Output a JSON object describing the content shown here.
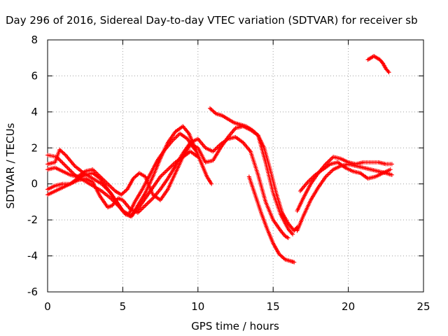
{
  "chart_data": {
    "type": "scatter",
    "title": "Day 296 of 2016, Sidereal Day-to-day VTEC variation (SDTVAR) for receiver sb",
    "xlabel": "GPS time / hours",
    "ylabel": "SDTVAR / TECUs",
    "xlim": [
      0,
      25
    ],
    "ylim": [
      -6,
      8
    ],
    "xticks": [
      0,
      5,
      10,
      15,
      20,
      25
    ],
    "yticks": [
      -6,
      -4,
      -2,
      0,
      2,
      4,
      6,
      8
    ],
    "grid": true,
    "marker": "plus",
    "color": "#ff0000",
    "series": [
      {
        "points": [
          [
            0,
            1.6
          ],
          [
            0.6,
            1.5
          ],
          [
            1.2,
            1.0
          ],
          [
            1.8,
            0.5
          ],
          [
            2.4,
            0.2
          ],
          [
            3.0,
            -0.1
          ],
          [
            3.6,
            -0.4
          ],
          [
            4.2,
            -0.8
          ],
          [
            4.8,
            -1.3
          ],
          [
            5.2,
            -1.7
          ],
          [
            5.6,
            -1.8
          ],
          [
            6.0,
            -1.2
          ],
          [
            6.5,
            -0.5
          ],
          [
            7.0,
            0.4
          ],
          [
            7.5,
            1.4
          ],
          [
            8.0,
            2.3
          ],
          [
            8.5,
            2.9
          ],
          [
            9.0,
            3.2
          ],
          [
            9.4,
            2.8
          ],
          [
            9.8,
            2.0
          ],
          [
            10.2,
            1.2
          ],
          [
            10.6,
            0.4
          ],
          [
            10.9,
            0.0
          ]
        ]
      },
      {
        "points": [
          [
            0,
            1.1
          ],
          [
            0.5,
            1.2
          ],
          [
            0.8,
            1.9
          ],
          [
            1.2,
            1.6
          ],
          [
            1.8,
            1.0
          ],
          [
            2.4,
            0.6
          ],
          [
            3.0,
            0.3
          ],
          [
            3.6,
            0.0
          ],
          [
            4.2,
            -0.5
          ],
          [
            4.6,
            -1.0
          ],
          [
            5.0,
            -1.5
          ],
          [
            5.4,
            -1.7
          ],
          [
            5.8,
            -1.0
          ],
          [
            6.3,
            -0.3
          ],
          [
            6.8,
            0.5
          ],
          [
            7.3,
            1.3
          ],
          [
            7.8,
            1.9
          ],
          [
            8.3,
            2.4
          ],
          [
            8.8,
            2.8
          ],
          [
            9.3,
            2.5
          ],
          [
            9.8,
            1.9
          ]
        ]
      },
      {
        "points": [
          [
            0,
            0.8
          ],
          [
            0.5,
            0.9
          ],
          [
            1.0,
            0.7
          ],
          [
            1.5,
            0.5
          ],
          [
            2.0,
            0.4
          ],
          [
            2.5,
            0.7
          ],
          [
            3.0,
            0.8
          ],
          [
            3.5,
            0.4
          ],
          [
            4.0,
            0.0
          ],
          [
            4.5,
            -0.4
          ],
          [
            4.9,
            -0.6
          ],
          [
            5.3,
            -0.3
          ],
          [
            5.7,
            0.3
          ],
          [
            6.1,
            0.6
          ],
          [
            6.5,
            0.4
          ],
          [
            7.0,
            -0.6
          ],
          [
            7.5,
            -0.9
          ],
          [
            8.0,
            -0.3
          ],
          [
            8.5,
            0.6
          ],
          [
            9.0,
            1.5
          ],
          [
            9.5,
            2.2
          ],
          [
            10.0,
            2.0
          ],
          [
            10.5,
            1.2
          ],
          [
            11.0,
            1.3
          ],
          [
            11.5,
            2.0
          ],
          [
            12.0,
            2.6
          ],
          [
            12.5,
            3.1
          ],
          [
            13.0,
            3.2
          ],
          [
            13.5,
            3.0
          ],
          [
            14.0,
            2.7
          ],
          [
            14.5,
            1.2
          ],
          [
            15.0,
            -0.5
          ],
          [
            15.5,
            -1.7
          ],
          [
            16.0,
            -2.5
          ],
          [
            16.3,
            -2.8
          ]
        ]
      },
      {
        "points": [
          [
            0,
            -0.3
          ],
          [
            0.5,
            -0.1
          ],
          [
            1.0,
            0.0
          ],
          [
            1.5,
            0.0
          ],
          [
            2.0,
            0.2
          ],
          [
            2.5,
            0.3
          ],
          [
            3.0,
            0.1
          ],
          [
            3.5,
            -0.7
          ],
          [
            4.0,
            -1.3
          ],
          [
            4.3,
            -1.2
          ],
          [
            4.7,
            -0.8
          ],
          [
            5.0,
            -0.9
          ],
          [
            5.5,
            -1.4
          ],
          [
            6.0,
            -1.6
          ],
          [
            6.5,
            -1.2
          ],
          [
            7.0,
            -0.8
          ],
          [
            7.5,
            -0.3
          ],
          [
            8.0,
            0.3
          ],
          [
            8.5,
            1.0
          ],
          [
            9.0,
            1.7
          ],
          [
            9.5,
            2.3
          ],
          [
            10.0,
            2.5
          ],
          [
            10.5,
            2.0
          ],
          [
            11.0,
            1.8
          ],
          [
            11.5,
            2.2
          ],
          [
            12.0,
            2.5
          ],
          [
            12.5,
            2.6
          ],
          [
            13.0,
            2.3
          ],
          [
            13.5,
            1.8
          ],
          [
            14.0,
            0.5
          ],
          [
            14.5,
            -1.0
          ],
          [
            15.0,
            -2.0
          ],
          [
            15.5,
            -2.6
          ],
          [
            15.8,
            -2.9
          ],
          [
            16.0,
            -3.0
          ]
        ]
      },
      {
        "points": [
          [
            0,
            -0.6
          ],
          [
            0.5,
            -0.4
          ],
          [
            1.0,
            -0.2
          ],
          [
            1.5,
            0.0
          ],
          [
            2.0,
            0.3
          ],
          [
            2.5,
            0.5
          ],
          [
            3.0,
            0.6
          ],
          [
            3.5,
            0.3
          ],
          [
            4.0,
            -0.3
          ],
          [
            4.5,
            -0.9
          ],
          [
            5.0,
            -1.5
          ],
          [
            5.5,
            -1.8
          ],
          [
            6.0,
            -1.4
          ],
          [
            6.5,
            -0.8
          ],
          [
            7.0,
            -0.2
          ],
          [
            7.5,
            0.4
          ],
          [
            8.0,
            0.8
          ],
          [
            8.5,
            1.2
          ],
          [
            9.0,
            1.5
          ],
          [
            9.5,
            1.8
          ],
          [
            10.0,
            1.5
          ]
        ]
      },
      {
        "points": [
          [
            10.8,
            4.2
          ],
          [
            11.2,
            3.9
          ],
          [
            11.6,
            3.8
          ],
          [
            12.0,
            3.6
          ],
          [
            12.4,
            3.4
          ],
          [
            12.8,
            3.3
          ],
          [
            13.2,
            3.2
          ],
          [
            13.6,
            3.0
          ],
          [
            14.0,
            2.7
          ],
          [
            14.4,
            2.0
          ],
          [
            14.8,
            0.8
          ],
          [
            15.2,
            -0.5
          ],
          [
            15.6,
            -1.6
          ],
          [
            16.0,
            -2.2
          ],
          [
            16.4,
            -2.6
          ],
          [
            16.6,
            -2.4
          ]
        ]
      },
      {
        "points": [
          [
            13.4,
            0.4
          ],
          [
            13.8,
            -0.6
          ],
          [
            14.2,
            -1.6
          ],
          [
            14.6,
            -2.5
          ],
          [
            15.0,
            -3.3
          ],
          [
            15.4,
            -3.9
          ],
          [
            15.8,
            -4.2
          ],
          [
            16.2,
            -4.3
          ],
          [
            16.4,
            -4.35
          ]
        ]
      },
      {
        "points": [
          [
            16.6,
            -2.6
          ],
          [
            17.0,
            -1.8
          ],
          [
            17.5,
            -0.9
          ],
          [
            18.0,
            -0.2
          ],
          [
            18.5,
            0.4
          ],
          [
            19.0,
            0.8
          ],
          [
            19.5,
            1.0
          ],
          [
            20.0,
            1.1
          ],
          [
            20.5,
            1.0
          ],
          [
            21.0,
            0.9
          ],
          [
            21.5,
            0.8
          ],
          [
            22.0,
            0.7
          ],
          [
            22.5,
            0.6
          ],
          [
            22.9,
            0.5
          ]
        ]
      },
      {
        "points": [
          [
            16.6,
            -1.5
          ],
          [
            17.0,
            -0.8
          ],
          [
            17.5,
            0.0
          ],
          [
            18.0,
            0.6
          ],
          [
            18.5,
            1.1
          ],
          [
            19.0,
            1.5
          ],
          [
            19.5,
            1.4
          ],
          [
            20.0,
            1.2
          ],
          [
            20.5,
            1.1
          ],
          [
            21.0,
            1.2
          ],
          [
            21.5,
            1.2
          ],
          [
            22.0,
            1.2
          ],
          [
            22.5,
            1.1
          ],
          [
            22.9,
            1.1
          ]
        ]
      },
      {
        "points": [
          [
            16.8,
            -0.4
          ],
          [
            17.3,
            0.1
          ],
          [
            17.8,
            0.5
          ],
          [
            18.3,
            0.8
          ],
          [
            18.8,
            1.1
          ],
          [
            19.3,
            1.2
          ],
          [
            19.8,
            0.9
          ],
          [
            20.3,
            0.7
          ],
          [
            20.8,
            0.6
          ],
          [
            21.3,
            0.3
          ],
          [
            21.8,
            0.4
          ],
          [
            22.3,
            0.6
          ],
          [
            22.8,
            0.8
          ]
        ]
      },
      {
        "points": [
          [
            21.3,
            6.9
          ],
          [
            21.5,
            7.0
          ],
          [
            21.7,
            7.1
          ],
          [
            21.9,
            7.0
          ],
          [
            22.1,
            6.9
          ],
          [
            22.3,
            6.7
          ],
          [
            22.5,
            6.4
          ],
          [
            22.7,
            6.2
          ]
        ]
      }
    ]
  }
}
